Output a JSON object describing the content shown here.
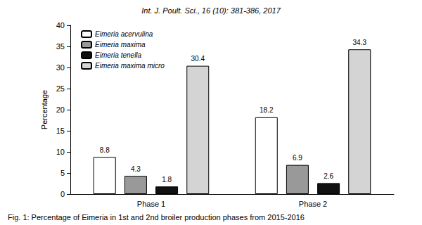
{
  "chart_data": {
    "type": "bar",
    "title": "Fig. 1: Percentage of Eimeria in 1st and 2nd broiler production phases from 2015-2016",
    "subtitle": "Int. J. Poult. Sci., 16 (10): 381-386, 2017",
    "y_label": "Percentage",
    "categories": [
      "Phase 1",
      "Phase 2"
    ],
    "series": [
      {
        "name": "Eimeria acervulina",
        "color": "#ffffff",
        "values": [
          8.8,
          18.2
        ]
      },
      {
        "name": "Eimeria maxima",
        "color": "#999999",
        "values": [
          4.3,
          6.9
        ]
      },
      {
        "name": "Eimeria tenella",
        "color": "#111111",
        "values": [
          1.8,
          2.6
        ]
      },
      {
        "name": "Eimeria maxima micro",
        "color": "#d4d4d4",
        "values": [
          30.4,
          34.3
        ]
      }
    ],
    "ylim": [
      0,
      40
    ],
    "yticks": [
      0,
      5,
      10,
      15,
      20,
      25,
      30,
      35,
      40
    ],
    "grid": false,
    "legend": "upper left",
    "data_labels": true
  }
}
